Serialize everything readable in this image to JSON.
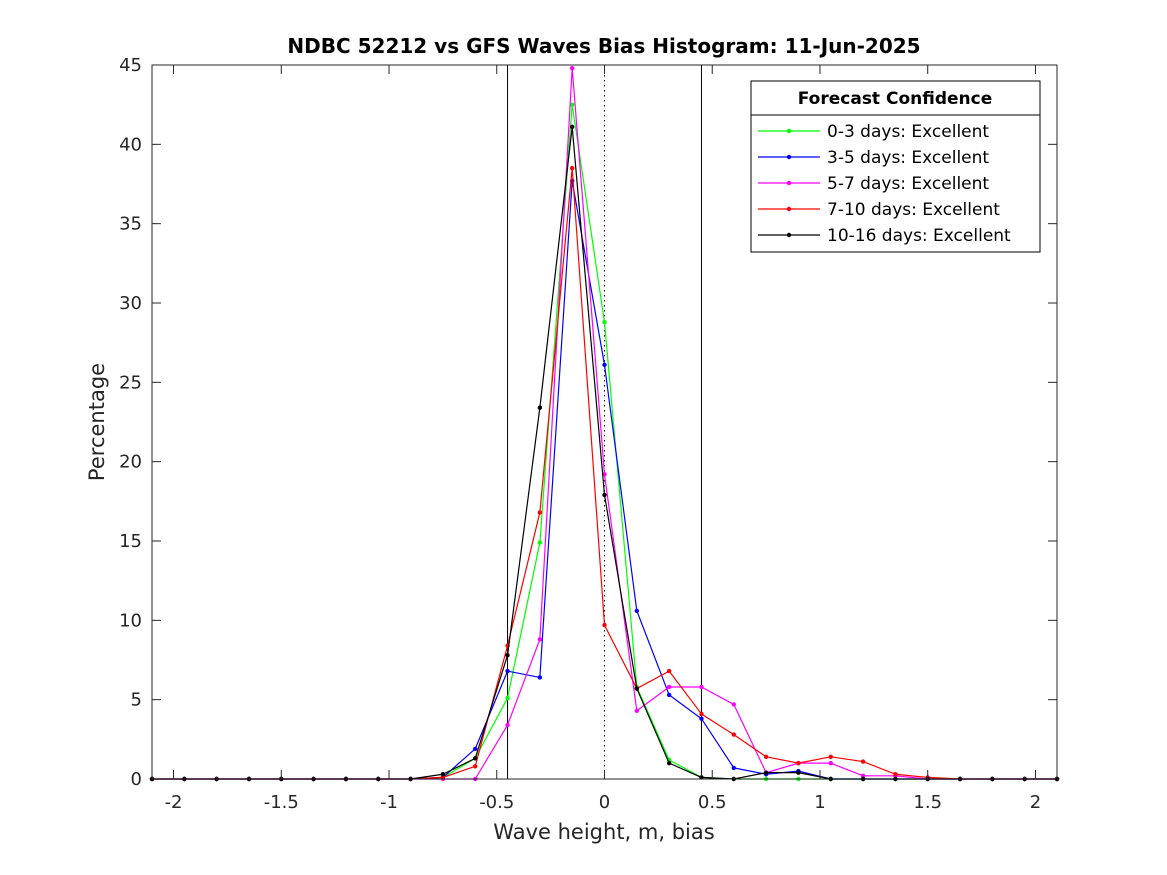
{
  "chart_data": {
    "type": "line",
    "title": "NDBC 52212 vs GFS Waves Bias Histogram: 11-Jun-2025",
    "xlabel": "Wave height, m, bias",
    "ylabel": "Percentage",
    "xlim": [
      -2.1,
      2.1
    ],
    "ylim": [
      0,
      45
    ],
    "xticks": [
      -2,
      -1.5,
      -1,
      -0.5,
      0,
      0.5,
      1,
      1.5,
      2
    ],
    "yticks": [
      0,
      5,
      10,
      15,
      20,
      25,
      30,
      35,
      40,
      45
    ],
    "grid": false,
    "legend": {
      "title": "Forecast Confidence",
      "position": "top-right"
    },
    "vertical_lines": [
      {
        "x": -0.45,
        "style": "solid",
        "color": "#000000"
      },
      {
        "x": 0,
        "style": "dotted",
        "color": "#000000"
      },
      {
        "x": 0.45,
        "style": "solid",
        "color": "#000000"
      }
    ],
    "x": [
      -2.1,
      -1.95,
      -1.8,
      -1.65,
      -1.5,
      -1.35,
      -1.2,
      -1.05,
      -0.9,
      -0.75,
      -0.6,
      -0.45,
      -0.3,
      -0.15,
      0,
      0.15,
      0.3,
      0.45,
      0.6,
      0.75,
      0.9,
      1.05,
      1.2,
      1.35,
      1.5,
      1.65,
      1.8,
      1.95,
      2.1
    ],
    "series": [
      {
        "name": "0-3 days: Excellent",
        "color": "#00ff00",
        "values": [
          0,
          0,
          0,
          0,
          0,
          0,
          0,
          0,
          0,
          0.1,
          1.3,
          5.1,
          14.9,
          42.5,
          28.8,
          5.8,
          1.2,
          0.1,
          0,
          0,
          0,
          0,
          0,
          0,
          0,
          0,
          0,
          0,
          0
        ]
      },
      {
        "name": "3-5 days: Excellent",
        "color": "#0000ff",
        "values": [
          0,
          0,
          0,
          0,
          0,
          0,
          0,
          0,
          0,
          0.1,
          1.9,
          6.8,
          6.4,
          37.7,
          26.1,
          10.6,
          5.3,
          3.8,
          0.7,
          0.3,
          0.5,
          0,
          0,
          0,
          0,
          0,
          0,
          0,
          0
        ]
      },
      {
        "name": "5-7 days: Excellent",
        "color": "#ff00ff",
        "values": [
          0,
          0,
          0,
          0,
          0,
          0,
          0,
          0,
          0,
          0,
          0,
          3.4,
          8.8,
          44.8,
          19.2,
          4.3,
          5.8,
          5.8,
          4.7,
          0.4,
          1.0,
          1.0,
          0.2,
          0.2,
          0,
          0,
          0,
          0,
          0
        ]
      },
      {
        "name": "7-10 days: Excellent",
        "color": "#ff0000",
        "values": [
          0,
          0,
          0,
          0,
          0,
          0,
          0,
          0,
          0,
          0.1,
          0.8,
          8.4,
          16.8,
          38.5,
          9.7,
          5.7,
          6.8,
          4.1,
          2.8,
          1.4,
          1.0,
          1.4,
          1.1,
          0.3,
          0.1,
          0,
          0,
          0,
          0
        ]
      },
      {
        "name": "10-16 days: Excellent",
        "color": "#000000",
        "values": [
          0,
          0,
          0,
          0,
          0,
          0,
          0,
          0,
          0,
          0.3,
          1.3,
          7.8,
          23.4,
          41.1,
          17.9,
          5.7,
          1.0,
          0.1,
          0,
          0.4,
          0.4,
          0,
          0,
          0,
          0,
          0,
          0,
          0,
          0
        ]
      }
    ]
  }
}
